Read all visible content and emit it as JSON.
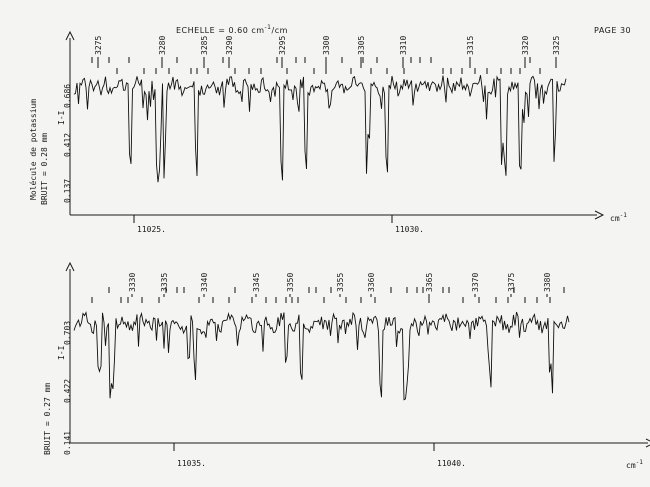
{
  "header": {
    "scale_label": "ECHELLE = 0.60 cm",
    "scale_exp": "-1",
    "scale_unit": "/cm",
    "page_label": "PAGE 30"
  },
  "side": {
    "molecule_label": "Molécule de potassium"
  },
  "chart_data": [
    {
      "type": "line",
      "noise_label": "BRUIT = 0.28 mm",
      "unit_label": "cm",
      "unit_exp": "-1",
      "ylabel": "I-I",
      "y_ticks": [
        "0.686",
        "0.412",
        "0.137"
      ],
      "x_ticks": [
        "11025.",
        "11030."
      ],
      "line_numbers": [
        "3275",
        "3280",
        "3285",
        "3290",
        "3295",
        "3300",
        "3305",
        "3310",
        "3315",
        "3320",
        "3325"
      ],
      "x_range": [
        11024.5,
        11033.5
      ],
      "y_range": [
        0,
        1
      ]
    },
    {
      "type": "line",
      "noise_label": "BRUIT = 0.27 mm",
      "unit_label": "cm",
      "unit_exp": "-1",
      "ylabel": "I-I",
      "y_ticks": [
        "0.703",
        "0.422",
        "0.141"
      ],
      "x_ticks": [
        "11035.",
        "11040."
      ],
      "line_numbers": [
        "3330",
        "3335",
        "3340",
        "3345",
        "3350",
        "3355",
        "3360",
        "3365",
        "3370",
        "3375",
        "3380"
      ],
      "x_range": [
        11034.5,
        11043.5
      ],
      "y_range": [
        0,
        1
      ]
    }
  ]
}
